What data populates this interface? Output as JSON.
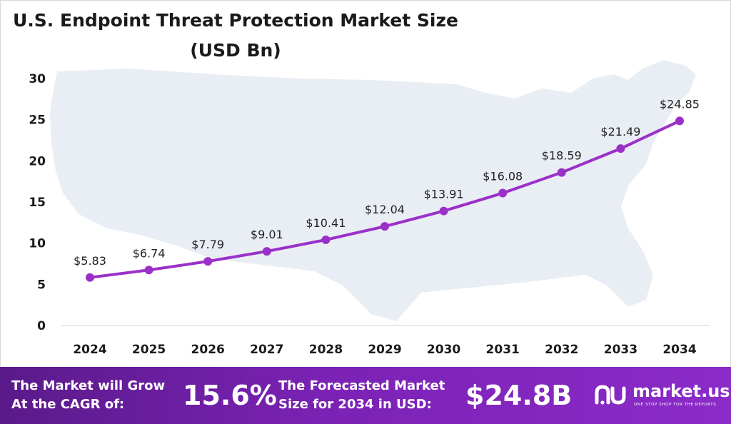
{
  "chart_data": {
    "type": "line",
    "title": "U.S. Endpoint Threat Protection Market Size",
    "subtitle": "(USD Bn)",
    "categories": [
      "2024",
      "2025",
      "2026",
      "2027",
      "2028",
      "2029",
      "2030",
      "2031",
      "2032",
      "2033",
      "2034"
    ],
    "values": [
      5.83,
      6.74,
      7.79,
      9.01,
      10.41,
      12.04,
      13.91,
      16.08,
      18.59,
      21.49,
      24.85
    ],
    "data_labels": [
      "$5.83",
      "$6.74",
      "$7.79",
      "$9.01",
      "$10.41",
      "$12.04",
      "$13.91",
      "$16.08",
      "$18.59",
      "$21.49",
      "$24.85"
    ],
    "ylim": [
      0,
      30
    ],
    "yticks": [
      "0",
      "5",
      "10",
      "15",
      "20",
      "25",
      "30"
    ],
    "xlabel": "",
    "ylabel": "",
    "grid": false,
    "legend": "none",
    "line_color": "#9b30c9",
    "background_map": "usa-map-silhouette"
  },
  "footer": {
    "cagr_label_line1": "The Market will Grow",
    "cagr_label_line2": "At the CAGR of:",
    "cagr_value": "15.6%",
    "forecast_label_line1": "The Forecasted Market",
    "forecast_label_line2": "Size for 2034 in USD:",
    "forecast_value": "$24.8B",
    "brand_name": "market.us",
    "brand_tagline": "ONE STOP SHOP FOR THE REPORTS",
    "brand_icon": "market-us-logo-icon"
  },
  "colors": {
    "line": "#9b30c9",
    "footer_start": "#5a1a8a",
    "footer_end": "#8b2bc8",
    "map": "#e9eef5"
  }
}
